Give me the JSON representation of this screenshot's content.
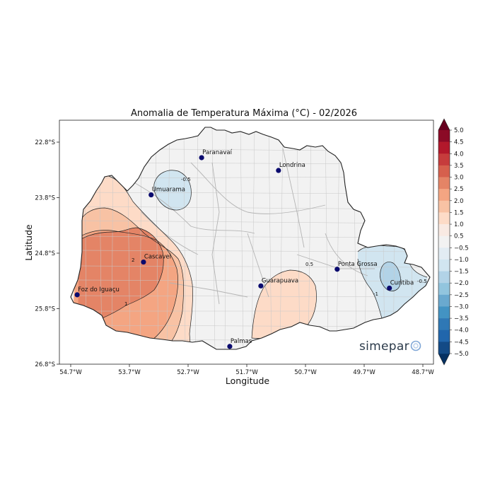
{
  "title": "Anomalia de Temperatura Máxima (°C) - 02/2026",
  "xlabel": "Longitude",
  "ylabel": "Latitude",
  "logo_text": "simepar",
  "x_ticks": [
    "54.7°W",
    "53.7°W",
    "52.7°W",
    "51.7°W",
    "50.7°W",
    "49.7°W",
    "48.7°W"
  ],
  "y_ticks": [
    "22.8°S",
    "23.8°S",
    "24.8°S",
    "25.8°S",
    "26.8°S"
  ],
  "colorbar": {
    "labels": [
      "5.0",
      "4.5",
      "4.0",
      "3.5",
      "3.0",
      "2.5",
      "2.0",
      "1.5",
      "1.0",
      "0.5",
      "−0.5",
      "−1.0",
      "−1.5",
      "−2.0",
      "−2.5",
      "−3.0",
      "−3.5",
      "−4.0",
      "−4.5",
      "−5.0"
    ],
    "colors": [
      "#67001f",
      "#8b0a26",
      "#b2182b",
      "#c63c3c",
      "#d6604d",
      "#e48466",
      "#f4a582",
      "#f8c2a4",
      "#fddbc7",
      "#f9eae3",
      "#f2f2f2",
      "#e2ecf3",
      "#d1e5f0",
      "#b2d3e7",
      "#92c5de",
      "#6aa9cf",
      "#4393c3",
      "#2f78b5",
      "#2166ac",
      "#134a86",
      "#053061"
    ]
  },
  "cities": [
    {
      "name": "Paranavaí",
      "lon": -52.47,
      "lat": -23.08
    },
    {
      "name": "Londrina",
      "lon": -51.16,
      "lat": -23.31
    },
    {
      "name": "Umuarama",
      "lon": -53.33,
      "lat": -23.75
    },
    {
      "name": "Cascavel",
      "lon": -53.46,
      "lat": -24.96
    },
    {
      "name": "Ponta Grossa",
      "lon": -50.16,
      "lat": -25.09
    },
    {
      "name": "Guarapuava",
      "lon": -51.46,
      "lat": -25.39
    },
    {
      "name": "Curitiba",
      "lon": -49.27,
      "lat": -25.43
    },
    {
      "name": "Foz do Iguaçu",
      "lon": -54.59,
      "lat": -25.55
    },
    {
      "name": "Palmas",
      "lon": -51.99,
      "lat": -26.48
    }
  ],
  "anomaly_regions": [
    {
      "name": "west-0.5-to-1.0",
      "range": "0.5 to 1.0",
      "color": "#fddbc7"
    },
    {
      "name": "west-1.0-to-1.5",
      "range": "1.0 to 1.5",
      "color": "#f8c2a4"
    },
    {
      "name": "west-1.5-to-2.0",
      "range": "1.5 to 2.0",
      "color": "#f4a582"
    },
    {
      "name": "west-2.0-to-2.5",
      "range": "2.0 to 2.5",
      "color": "#e48466"
    },
    {
      "name": "south-central-0.5-to-1.0",
      "range": "0.5 to 1.0",
      "color": "#fddbc7"
    },
    {
      "name": "north-minus-0.5-to-minus-1.0",
      "range": "-0.5 to -1.0",
      "color": "#d1e5f0"
    },
    {
      "name": "east-minus-0.5-to-minus-1.0",
      "range": "-0.5 to -1.0",
      "color": "#d1e5f0"
    },
    {
      "name": "east-minus-1.0-to-minus-1.5",
      "range": "-1.0 to -1.5",
      "color": "#b2d3e7"
    }
  ],
  "contour_labels": [
    "2",
    "1",
    "-0.5",
    "0.5",
    "-1",
    "-0.5"
  ],
  "colors": {
    "land": "#f2f2f2",
    "state_border": "#222222",
    "municipal_border": "#c8c8c8",
    "city_marker": "#0a0a6e"
  }
}
